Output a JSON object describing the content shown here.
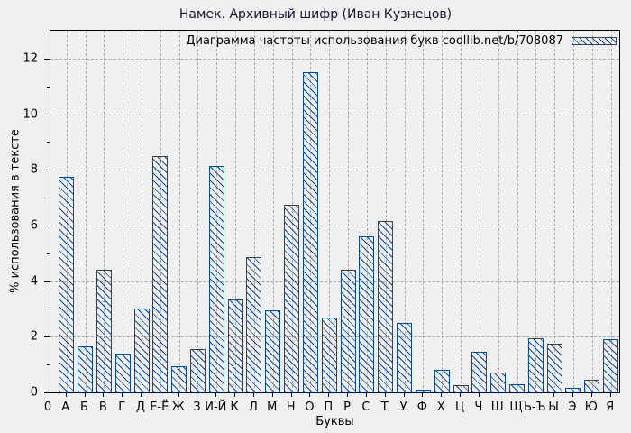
{
  "figure": {
    "background_color": "#f0f0f0",
    "accent_color": "#0b4a9e",
    "grid_color": "#a9a9a9"
  },
  "chart_data": {
    "type": "bar",
    "title": "Намек. Архивный шифр (Иван Кузнецов)",
    "legend": "Диаграмма частоты использования букв coollib.net/b/708087",
    "legend_position": "top-right-inside",
    "xlabel": "Буквы",
    "ylabel": "% использования в тексте",
    "x_origin_label": "0",
    "ylim": [
      0,
      13
    ],
    "yticks": [
      0,
      2,
      4,
      6,
      8,
      10,
      12
    ],
    "y_minor_ticks": [
      1,
      3,
      5,
      7,
      9,
      11
    ],
    "grid": true,
    "bar_style": "blue diagonal hatch, unfilled",
    "categories": [
      "А",
      "Б",
      "В",
      "Г",
      "Д",
      "Е-Ё",
      "Ж",
      "З",
      "И-Й",
      "К",
      "Л",
      "М",
      "Н",
      "О",
      "П",
      "Р",
      "С",
      "Т",
      "У",
      "Ф",
      "Х",
      "Ц",
      "Ч",
      "Ш",
      "Щ",
      "Ь-Ъ",
      "Ы",
      "Э",
      "Ю",
      "Я"
    ],
    "values": [
      7.75,
      1.65,
      4.4,
      1.4,
      3.0,
      8.5,
      0.95,
      1.55,
      8.15,
      3.35,
      4.85,
      2.95,
      6.75,
      11.5,
      2.7,
      4.4,
      5.6,
      6.15,
      2.5,
      0.1,
      0.8,
      0.25,
      1.45,
      0.7,
      0.3,
      1.95,
      1.75,
      0.15,
      0.45,
      1.9
    ]
  }
}
